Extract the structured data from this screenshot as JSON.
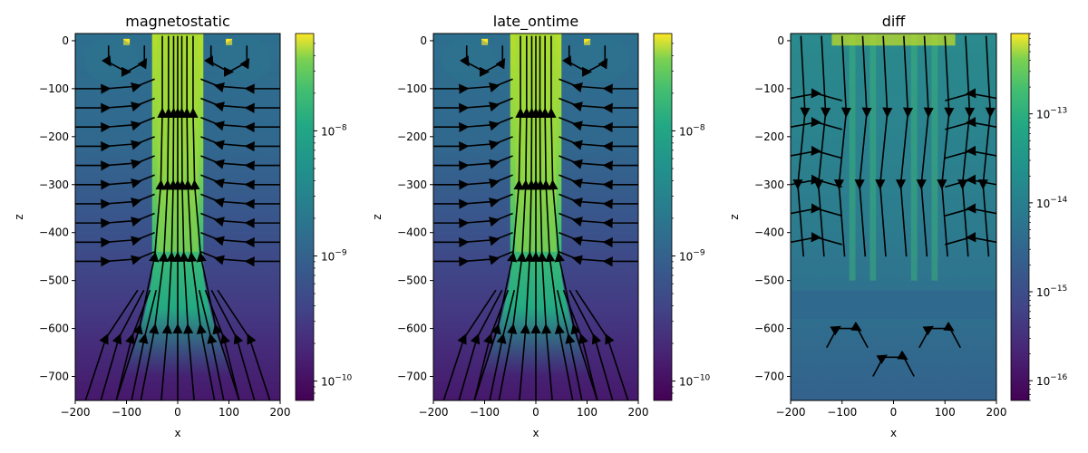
{
  "chart_data": [
    {
      "type": "heatmap",
      "title": "magnetostatic",
      "xlabel": "x",
      "ylabel": "z",
      "xlim": [
        -200,
        200
      ],
      "ylim": [
        -750,
        15
      ],
      "xticks": [
        "−200",
        "−100",
        "0",
        "100",
        "200"
      ],
      "xtick_values": [
        -200,
        -100,
        0,
        100,
        200
      ],
      "yticks": [
        "0",
        "−100",
        "−200",
        "−300",
        "−400",
        "−500",
        "−600",
        "−700"
      ],
      "ytick_values": [
        0,
        -100,
        -200,
        -300,
        -400,
        -500,
        -600,
        -700
      ],
      "colorbar": {
        "scale": "log",
        "range": [
          7e-11,
          6e-08
        ],
        "ticks": [
          "10",
          "10"
        ],
        "tick_exponents": [
          "−8",
          "−9",
          "−10"
        ],
        "tick_values": [
          1e-08,
          1e-09,
          1e-10
        ]
      },
      "colormap": "viridis",
      "overlay": "streamlines"
    },
    {
      "type": "heatmap",
      "title": "late_ontime",
      "xlabel": "x",
      "ylabel": "z",
      "xlim": [
        -200,
        200
      ],
      "ylim": [
        -750,
        15
      ],
      "xticks": [
        "−200",
        "−100",
        "0",
        "100",
        "200"
      ],
      "xtick_values": [
        -200,
        -100,
        0,
        100,
        200
      ],
      "yticks": [
        "0",
        "−100",
        "−200",
        "−300",
        "−400",
        "−500",
        "−600",
        "−700"
      ],
      "ytick_values": [
        0,
        -100,
        -200,
        -300,
        -400,
        -500,
        -600,
        -700
      ],
      "colorbar": {
        "scale": "log",
        "range": [
          7e-11,
          6e-08
        ],
        "tick_exponents": [
          "−8",
          "−9",
          "−10"
        ],
        "tick_values": [
          1e-08,
          1e-09,
          1e-10
        ]
      },
      "colormap": "viridis",
      "overlay": "streamlines"
    },
    {
      "type": "heatmap",
      "title": "diff",
      "xlabel": "x",
      "ylabel": "z",
      "xlim": [
        -200,
        200
      ],
      "ylim": [
        -750,
        15
      ],
      "xticks": [
        "−200",
        "−100",
        "0",
        "100",
        "200"
      ],
      "xtick_values": [
        -200,
        -100,
        0,
        100,
        200
      ],
      "yticks": [
        "0",
        "−100",
        "−200",
        "−300",
        "−400",
        "−500",
        "−600",
        "−700"
      ],
      "ytick_values": [
        0,
        -100,
        -200,
        -300,
        -400,
        -500,
        -600,
        -700
      ],
      "colorbar": {
        "scale": "log",
        "range": [
          6e-17,
          8e-13
        ],
        "tick_exponents": [
          "−13",
          "−14",
          "−15",
          "−16"
        ],
        "tick_values": [
          1e-13,
          1e-14,
          1e-15,
          1e-16
        ]
      },
      "colormap": "viridis",
      "overlay": "streamlines"
    }
  ],
  "tick_base": "10"
}
